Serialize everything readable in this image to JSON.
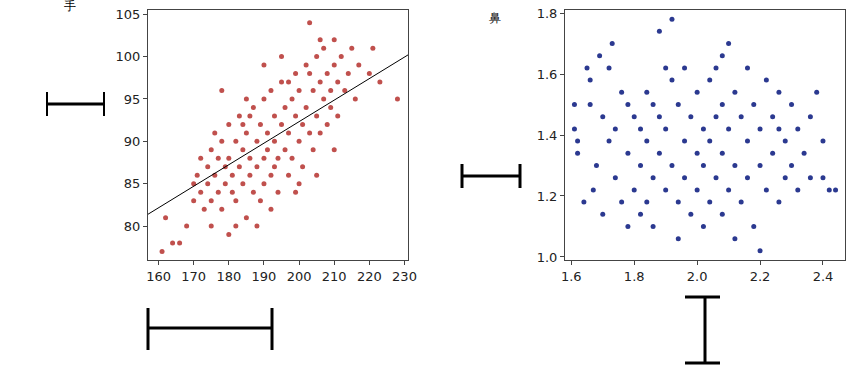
{
  "chart_data": [
    {
      "type": "scatter",
      "title": "手",
      "grid": false,
      "xlim": [
        157,
        231
      ],
      "xticks": [
        160,
        170,
        180,
        190,
        200,
        210,
        220,
        230
      ],
      "ylim": [
        76,
        105.5
      ],
      "yticks": [
        80,
        85,
        90,
        95,
        100,
        105
      ],
      "series": [
        {
          "type": "scatter",
          "color": "#c0504d",
          "marker": "circle",
          "x": [
            161,
            162,
            164,
            166,
            168,
            170,
            170,
            171,
            172,
            172,
            173,
            174,
            174,
            175,
            175,
            176,
            176,
            177,
            177,
            178,
            178,
            179,
            179,
            180,
            180,
            180,
            181,
            181,
            182,
            182,
            183,
            183,
            184,
            184,
            185,
            185,
            186,
            186,
            187,
            187,
            188,
            188,
            189,
            189,
            190,
            190,
            190,
            191,
            191,
            192,
            192,
            193,
            193,
            194,
            194,
            195,
            195,
            196,
            196,
            197,
            197,
            198,
            198,
            199,
            199,
            200,
            200,
            201,
            201,
            202,
            202,
            203,
            203,
            204,
            204,
            205,
            205,
            206,
            206,
            207,
            207,
            208,
            208,
            209,
            209,
            210,
            210,
            211,
            211,
            212,
            213,
            214,
            215,
            216,
            217,
            220,
            221,
            223,
            228,
            178,
            185,
            190,
            195,
            200,
            205,
            210,
            182,
            188,
            192,
            197,
            186,
            175,
            184,
            193,
            199,
            203,
            206
          ],
          "values": [
            77,
            81,
            78,
            78,
            80,
            85,
            83,
            86,
            84,
            88,
            82,
            87,
            85,
            83,
            89,
            86,
            91,
            84,
            88,
            82,
            90,
            87,
            85,
            79,
            88,
            92,
            84,
            86,
            90,
            83,
            87,
            93,
            85,
            89,
            81,
            91,
            88,
            86,
            94,
            84,
            90,
            87,
            92,
            83,
            88,
            95,
            85,
            91,
            89,
            86,
            96,
            90,
            93,
            88,
            84,
            92,
            97,
            89,
            94,
            91,
            86,
            95,
            88,
            93,
            98,
            90,
            96,
            92,
            87,
            99,
            94,
            104,
            91,
            96,
            89,
            100,
            93,
            97,
            91,
            95,
            101,
            98,
            92,
            96,
            94,
            99,
            102,
            97,
            93,
            100,
            96,
            98,
            101,
            95,
            99,
            98,
            101,
            97,
            95,
            96,
            95,
            99,
            100,
            85,
            86,
            89,
            80,
            80,
            82,
            97,
            93,
            80,
            92,
            87,
            84,
            98,
            102
          ]
        },
        {
          "type": "line",
          "color": "#000000",
          "line_style": "solid",
          "x": [
            157,
            231
          ],
          "values": [
            81.4,
            100.2
          ]
        }
      ]
    },
    {
      "type": "scatter",
      "title": "鼻",
      "grid": false,
      "xlim": [
        1.58,
        2.47
      ],
      "xticks": [
        1.6,
        1.8,
        {
          "value": 2,
          "label": "2.0"
        },
        2.2,
        2.4
      ],
      "ylim": [
        0.99,
        1.81
      ],
      "yticks": [
        {
          "value": 1,
          "label": "1.0"
        },
        1.2,
        1.4,
        1.6,
        1.8
      ],
      "series": [
        {
          "type": "scatter",
          "color": "#2b3990",
          "marker": "circle",
          "x": [
            1.61,
            1.61,
            1.62,
            1.62,
            1.65,
            1.66,
            1.66,
            1.67,
            1.68,
            1.69,
            1.7,
            1.7,
            1.72,
            1.73,
            1.74,
            1.74,
            1.76,
            1.76,
            1.78,
            1.78,
            1.78,
            1.8,
            1.8,
            1.82,
            1.82,
            1.82,
            1.84,
            1.84,
            1.84,
            1.86,
            1.86,
            1.86,
            1.88,
            1.88,
            1.88,
            1.9,
            1.9,
            1.92,
            1.92,
            1.92,
            1.94,
            1.94,
            1.94,
            1.96,
            1.96,
            1.96,
            1.98,
            1.98,
            2.0,
            2.0,
            2.0,
            2.02,
            2.02,
            2.02,
            2.04,
            2.04,
            2.04,
            2.06,
            2.06,
            2.08,
            2.08,
            2.08,
            2.08,
            2.1,
            2.1,
            2.1,
            2.12,
            2.12,
            2.12,
            2.14,
            2.14,
            2.16,
            2.16,
            2.16,
            2.18,
            2.18,
            2.2,
            2.2,
            2.2,
            2.22,
            2.22,
            2.24,
            2.24,
            2.26,
            2.26,
            2.28,
            2.28,
            2.3,
            2.3,
            2.32,
            2.32,
            2.34,
            2.36,
            2.36,
            2.38,
            2.4,
            2.4,
            2.42,
            2.44,
            1.64,
            1.9,
            2.06,
            1.72,
            2.26
          ],
          "values": [
            1.5,
            1.42,
            1.38,
            1.34,
            1.62,
            1.58,
            1.5,
            1.22,
            1.3,
            1.66,
            1.46,
            1.14,
            1.62,
            1.7,
            1.42,
            1.26,
            1.54,
            1.18,
            1.5,
            1.34,
            1.1,
            1.46,
            1.22,
            1.42,
            1.3,
            1.14,
            1.54,
            1.38,
            1.18,
            1.5,
            1.26,
            1.1,
            1.74,
            1.46,
            1.34,
            1.42,
            1.22,
            1.78,
            1.58,
            1.3,
            1.5,
            1.18,
            1.06,
            1.62,
            1.38,
            1.26,
            1.46,
            1.14,
            1.54,
            1.34,
            1.22,
            1.42,
            1.3,
            1.1,
            1.58,
            1.38,
            1.18,
            1.46,
            1.26,
            1.66,
            1.5,
            1.34,
            1.14,
            1.7,
            1.42,
            1.22,
            1.54,
            1.3,
            1.06,
            1.46,
            1.18,
            1.62,
            1.38,
            1.26,
            1.5,
            1.1,
            1.42,
            1.3,
            1.02,
            1.58,
            1.22,
            1.46,
            1.34,
            1.54,
            1.18,
            1.38,
            1.26,
            1.5,
            1.3,
            1.42,
            1.22,
            1.34,
            1.46,
            1.26,
            1.54,
            1.26,
            1.38,
            1.22,
            1.22,
            1.18,
            1.62,
            1.62,
            1.38,
            1.42
          ]
        }
      ]
    }
  ]
}
